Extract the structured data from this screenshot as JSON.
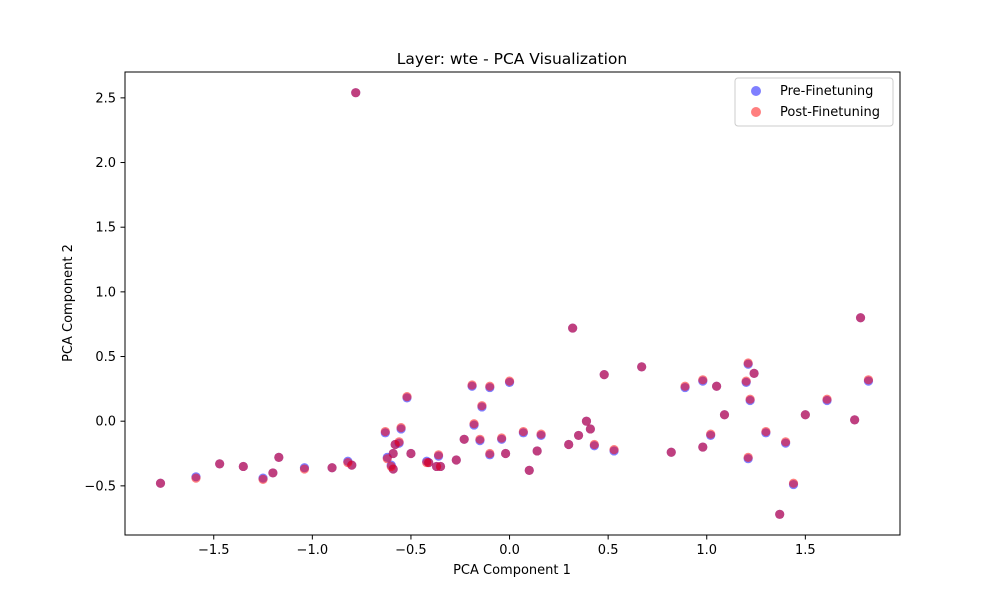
{
  "chart_data": {
    "type": "scatter",
    "title": "Layer: wte - PCA Visualization",
    "xlabel": "PCA Component 1",
    "ylabel": "PCA Component 2",
    "xlim": [
      -1.95,
      1.98
    ],
    "ylim": [
      -0.88,
      2.7
    ],
    "xticks": [
      -1.5,
      -1.0,
      -0.5,
      0.0,
      0.5,
      1.0,
      1.5
    ],
    "xtick_labels": [
      "−1.5",
      "−1.0",
      "−0.5",
      "0.0",
      "0.5",
      "1.0",
      "1.5"
    ],
    "yticks": [
      -0.5,
      0.0,
      0.5,
      1.0,
      1.5,
      2.0,
      2.5
    ],
    "yticks_labels": [
      "−0.5",
      "0.0",
      "0.5",
      "1.0",
      "1.5",
      "2.0",
      "2.5"
    ],
    "grid": false,
    "legend_position": "top-right",
    "series": [
      {
        "name": "Pre-Finetuning",
        "color": "#0000ff",
        "opacity": 0.5,
        "points": [
          [
            -1.77,
            -0.48
          ],
          [
            -1.59,
            -0.43
          ],
          [
            -1.47,
            -0.33
          ],
          [
            -1.35,
            -0.35
          ],
          [
            -1.25,
            -0.44
          ],
          [
            -1.2,
            -0.4
          ],
          [
            -1.17,
            -0.28
          ],
          [
            -1.04,
            -0.36
          ],
          [
            -0.9,
            -0.36
          ],
          [
            -0.82,
            -0.31
          ],
          [
            -0.8,
            -0.34
          ],
          [
            -0.78,
            2.54
          ],
          [
            -0.63,
            -0.09
          ],
          [
            -0.62,
            -0.28
          ],
          [
            -0.6,
            -0.34
          ],
          [
            -0.59,
            -0.25
          ],
          [
            -0.59,
            -0.37
          ],
          [
            -0.58,
            -0.18
          ],
          [
            -0.56,
            -0.17
          ],
          [
            -0.55,
            -0.06
          ],
          [
            -0.52,
            0.18
          ],
          [
            -0.5,
            -0.25
          ],
          [
            -0.42,
            -0.31
          ],
          [
            -0.41,
            -0.32
          ],
          [
            -0.37,
            -0.35
          ],
          [
            -0.36,
            -0.27
          ],
          [
            -0.35,
            -0.35
          ],
          [
            -0.27,
            -0.3
          ],
          [
            -0.23,
            -0.14
          ],
          [
            -0.19,
            0.27
          ],
          [
            -0.18,
            -0.03
          ],
          [
            -0.15,
            -0.15
          ],
          [
            -0.14,
            0.11
          ],
          [
            -0.1,
            0.26
          ],
          [
            -0.1,
            -0.26
          ],
          [
            -0.04,
            -0.14
          ],
          [
            -0.02,
            -0.25
          ],
          [
            0.0,
            0.3
          ],
          [
            0.07,
            -0.09
          ],
          [
            0.1,
            -0.38
          ],
          [
            0.14,
            -0.23
          ],
          [
            0.16,
            -0.11
          ],
          [
            0.3,
            -0.18
          ],
          [
            0.32,
            0.72
          ],
          [
            0.35,
            -0.11
          ],
          [
            0.39,
            0.0
          ],
          [
            0.41,
            -0.06
          ],
          [
            0.43,
            -0.19
          ],
          [
            0.48,
            0.36
          ],
          [
            0.53,
            -0.23
          ],
          [
            0.67,
            0.42
          ],
          [
            0.82,
            -0.24
          ],
          [
            0.89,
            0.26
          ],
          [
            0.98,
            0.31
          ],
          [
            0.98,
            -0.2
          ],
          [
            1.02,
            -0.11
          ],
          [
            1.05,
            0.27
          ],
          [
            1.09,
            0.05
          ],
          [
            1.2,
            0.3
          ],
          [
            1.21,
            0.44
          ],
          [
            1.21,
            -0.29
          ],
          [
            1.22,
            0.16
          ],
          [
            1.24,
            0.37
          ],
          [
            1.3,
            -0.09
          ],
          [
            1.37,
            -0.72
          ],
          [
            1.4,
            -0.17
          ],
          [
            1.44,
            -0.49
          ],
          [
            1.5,
            0.05
          ],
          [
            1.61,
            0.16
          ],
          [
            1.75,
            0.01
          ],
          [
            1.78,
            0.8
          ],
          [
            1.82,
            0.31
          ]
        ]
      },
      {
        "name": "Post-Finetuning",
        "color": "#ff0000",
        "opacity": 0.5,
        "points": [
          [
            -1.77,
            -0.48
          ],
          [
            -1.59,
            -0.44
          ],
          [
            -1.47,
            -0.33
          ],
          [
            -1.35,
            -0.35
          ],
          [
            -1.25,
            -0.45
          ],
          [
            -1.2,
            -0.4
          ],
          [
            -1.17,
            -0.28
          ],
          [
            -1.04,
            -0.37
          ],
          [
            -0.9,
            -0.36
          ],
          [
            -0.82,
            -0.32
          ],
          [
            -0.8,
            -0.34
          ],
          [
            -0.78,
            2.54
          ],
          [
            -0.63,
            -0.08
          ],
          [
            -0.62,
            -0.29
          ],
          [
            -0.6,
            -0.35
          ],
          [
            -0.59,
            -0.25
          ],
          [
            -0.59,
            -0.37
          ],
          [
            -0.58,
            -0.18
          ],
          [
            -0.56,
            -0.16
          ],
          [
            -0.55,
            -0.05
          ],
          [
            -0.52,
            0.19
          ],
          [
            -0.5,
            -0.25
          ],
          [
            -0.42,
            -0.32
          ],
          [
            -0.41,
            -0.32
          ],
          [
            -0.37,
            -0.35
          ],
          [
            -0.36,
            -0.26
          ],
          [
            -0.35,
            -0.35
          ],
          [
            -0.27,
            -0.3
          ],
          [
            -0.23,
            -0.14
          ],
          [
            -0.19,
            0.28
          ],
          [
            -0.18,
            -0.02
          ],
          [
            -0.15,
            -0.14
          ],
          [
            -0.14,
            0.12
          ],
          [
            -0.1,
            0.27
          ],
          [
            -0.1,
            -0.25
          ],
          [
            -0.04,
            -0.13
          ],
          [
            -0.02,
            -0.25
          ],
          [
            0.0,
            0.31
          ],
          [
            0.07,
            -0.08
          ],
          [
            0.1,
            -0.38
          ],
          [
            0.14,
            -0.23
          ],
          [
            0.16,
            -0.1
          ],
          [
            0.3,
            -0.18
          ],
          [
            0.32,
            0.72
          ],
          [
            0.35,
            -0.11
          ],
          [
            0.39,
            0.0
          ],
          [
            0.41,
            -0.06
          ],
          [
            0.43,
            -0.18
          ],
          [
            0.48,
            0.36
          ],
          [
            0.53,
            -0.22
          ],
          [
            0.67,
            0.42
          ],
          [
            0.82,
            -0.24
          ],
          [
            0.89,
            0.27
          ],
          [
            0.98,
            0.32
          ],
          [
            0.98,
            -0.2
          ],
          [
            1.02,
            -0.1
          ],
          [
            1.05,
            0.27
          ],
          [
            1.09,
            0.05
          ],
          [
            1.2,
            0.31
          ],
          [
            1.21,
            0.45
          ],
          [
            1.21,
            -0.28
          ],
          [
            1.22,
            0.17
          ],
          [
            1.24,
            0.37
          ],
          [
            1.3,
            -0.08
          ],
          [
            1.37,
            -0.72
          ],
          [
            1.4,
            -0.16
          ],
          [
            1.44,
            -0.48
          ],
          [
            1.5,
            0.05
          ],
          [
            1.61,
            0.17
          ],
          [
            1.75,
            0.01
          ],
          [
            1.78,
            0.8
          ],
          [
            1.82,
            0.32
          ]
        ]
      }
    ]
  }
}
